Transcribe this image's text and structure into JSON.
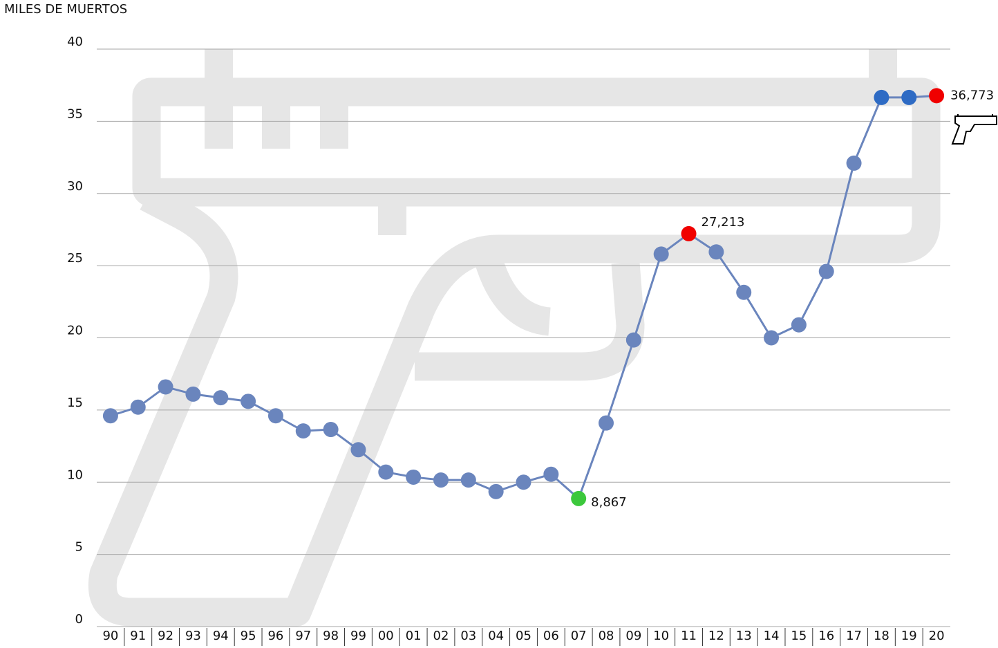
{
  "chart_data": {
    "type": "line",
    "y_axis_label": "MILES DE MUERTOS",
    "categories": [
      "90",
      "91",
      "92",
      "93",
      "94",
      "95",
      "96",
      "97",
      "98",
      "99",
      "00",
      "01",
      "02",
      "03",
      "04",
      "05",
      "06",
      "07",
      "08",
      "09",
      "10",
      "11",
      "12",
      "13",
      "14",
      "15",
      "16",
      "17",
      "18",
      "19",
      "20"
    ],
    "series": [
      {
        "name": null,
        "color": "#6a85bd",
        "values": [
          14.6,
          15.2,
          16.6,
          16.1,
          15.85,
          15.6,
          14.6,
          13.55,
          13.65,
          12.25,
          10.7,
          10.35,
          10.15,
          10.15,
          9.35,
          10.0,
          10.55,
          8.867,
          14.1,
          19.85,
          25.8,
          27.213,
          25.95,
          23.15,
          20.0,
          20.9,
          24.6,
          32.1,
          36.65,
          36.65,
          36.773
        ],
        "value_labels": [
          null,
          null,
          null,
          null,
          null,
          null,
          null,
          null,
          null,
          null,
          null,
          null,
          null,
          null,
          null,
          null,
          null,
          "8,867",
          null,
          null,
          null,
          "27,213",
          null,
          null,
          null,
          null,
          null,
          null,
          null,
          null,
          "36,773"
        ],
        "point_colors": [
          "#6a85bd",
          "#6a85bd",
          "#6a85bd",
          "#6a85bd",
          "#6a85bd",
          "#6a85bd",
          "#6a85bd",
          "#6a85bd",
          "#6a85bd",
          "#6a85bd",
          "#6a85bd",
          "#6a85bd",
          "#6a85bd",
          "#6a85bd",
          "#6a85bd",
          "#6a85bd",
          "#6a85bd",
          "#3cc83c",
          "#6a85bd",
          "#6a85bd",
          "#6a85bd",
          "#f00000",
          "#6a85bd",
          "#6a85bd",
          "#6a85bd",
          "#6a85bd",
          "#6a85bd",
          "#6a85bd",
          "#2e6bc4",
          "#2e6bc4",
          "#f00000"
        ]
      }
    ],
    "ylim": [
      0,
      40
    ],
    "yticks": [
      0,
      5,
      10,
      15,
      20,
      25,
      30,
      35,
      40
    ],
    "grid": true
  }
}
